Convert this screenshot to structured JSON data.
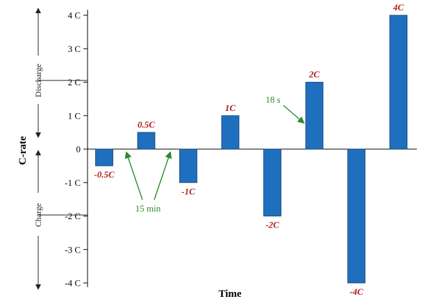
{
  "chart_data": {
    "type": "bar",
    "title": "",
    "xlabel": "Time",
    "ylabel": "C-rate",
    "ylim": [
      -4,
      4
    ],
    "y_ticks": [
      {
        "value": 4,
        "label": "4 C"
      },
      {
        "value": 3,
        "label": "3 C"
      },
      {
        "value": 2,
        "label": "2 C"
      },
      {
        "value": 1,
        "label": "1 C"
      },
      {
        "value": 0,
        "label": "0"
      },
      {
        "value": -1,
        "label": "-1 C"
      },
      {
        "value": -2,
        "label": "-2 C"
      },
      {
        "value": -3,
        "label": "-3 C"
      },
      {
        "value": -4,
        "label": "-4 C"
      }
    ],
    "bars": [
      {
        "value": -0.5,
        "label": "-0.5C"
      },
      {
        "value": 0.5,
        "label": "0.5C"
      },
      {
        "value": -1,
        "label": "-1C"
      },
      {
        "value": 1,
        "label": "1C"
      },
      {
        "value": -2,
        "label": "-2C"
      },
      {
        "value": 2,
        "label": "2C"
      },
      {
        "value": -4,
        "label": "-4C"
      },
      {
        "value": 4,
        "label": "4C"
      }
    ],
    "bar_color": "#1f6fbf",
    "bar_label_color": "#b31b1b",
    "regions": {
      "discharge": "Discharge",
      "charge": "Charge"
    },
    "annotations": {
      "rest": "15 min",
      "pulse": "18 s",
      "color": "#2a8a2a"
    },
    "grid": false
  }
}
